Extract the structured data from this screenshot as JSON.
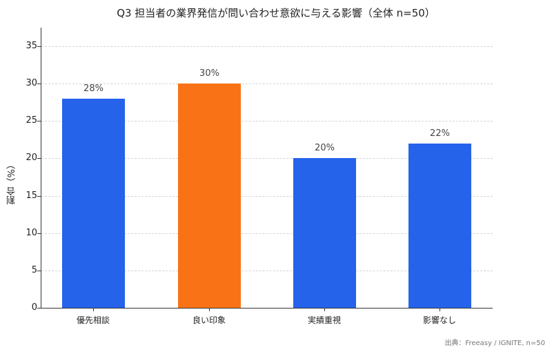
{
  "chart_data": {
    "type": "bar",
    "title": "Q3 担当者の業界発信が問い合わせ意欲に与える影響（全体 n=50）",
    "xlabel": "",
    "ylabel": "割合（%）",
    "ylim": [
      0,
      37.5
    ],
    "yticks": [
      0,
      5,
      10,
      15,
      20,
      25,
      30,
      35
    ],
    "grid": true,
    "categories": [
      "優先相談",
      "良い印象",
      "実績重視",
      "影響なし"
    ],
    "values": [
      28,
      30,
      20,
      22
    ],
    "data_labels": [
      "28%",
      "30%",
      "20%",
      "22%"
    ],
    "colors": [
      "#2563eb",
      "#f97316",
      "#2563eb",
      "#2563eb"
    ],
    "source": "出典：Freeasy / IGNITE, n=50"
  }
}
